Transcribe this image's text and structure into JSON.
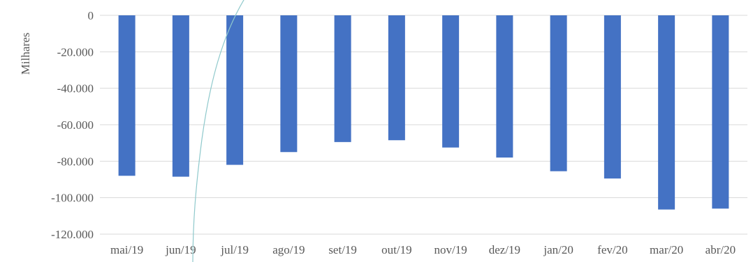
{
  "chart_data": {
    "type": "bar",
    "ylabel": "Milhares",
    "categories": [
      "mai/19",
      "jun/19",
      "jul/19",
      "ago/19",
      "set/19",
      "out/19",
      "nov/19",
      "dez/19",
      "jan/20",
      "fev/20",
      "mar/20",
      "abr/20"
    ],
    "values": [
      -88000,
      -88500,
      -82000,
      -75000,
      -69500,
      -68500,
      -72500,
      -78000,
      -85500,
      -89500,
      -106500,
      -106000
    ],
    "ylim": [
      -120000,
      0
    ],
    "yticks": [
      0,
      -20000,
      -40000,
      -60000,
      -80000,
      -100000,
      -120000
    ],
    "ytick_labels": [
      "0",
      "-20.000",
      "-40.000",
      "-60.000",
      "-80.000",
      "-100.000",
      "-120.000"
    ],
    "grid": true,
    "bar_color": "#4472C4",
    "grid_color": "#D9D9D9",
    "text_color": "#595959",
    "overlay_arc_color": "#8FC9CC"
  }
}
